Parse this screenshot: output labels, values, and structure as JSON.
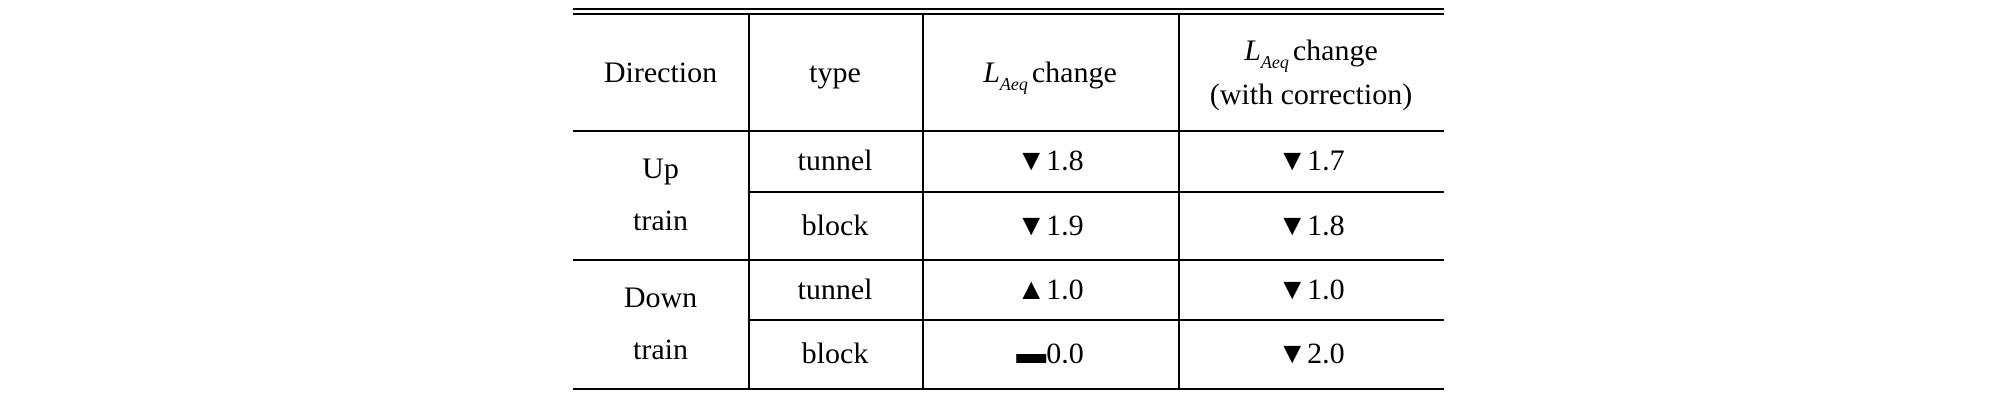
{
  "table": {
    "header": {
      "direction": "Direction",
      "type": "type",
      "change": {
        "symbol": "L",
        "subscript": "Aeq",
        "text": "change"
      },
      "corrected": {
        "symbol": "L",
        "subscript": "Aeq",
        "text": "change",
        "note": "(with correction)"
      }
    },
    "groups": [
      {
        "direction": [
          "Up",
          "train"
        ],
        "rows": [
          {
            "type": "tunnel",
            "change": "▼1.8",
            "corrected": "▼1.7"
          },
          {
            "type": "block",
            "change": "▼1.9",
            "corrected": "▼1.8"
          }
        ]
      },
      {
        "direction": [
          "Down",
          "train"
        ],
        "rows": [
          {
            "type": "tunnel",
            "change": "▲1.0",
            "corrected": "▼1.0"
          },
          {
            "type": "block",
            "change": "▬0.0",
            "corrected": "▼2.0"
          }
        ]
      }
    ]
  }
}
